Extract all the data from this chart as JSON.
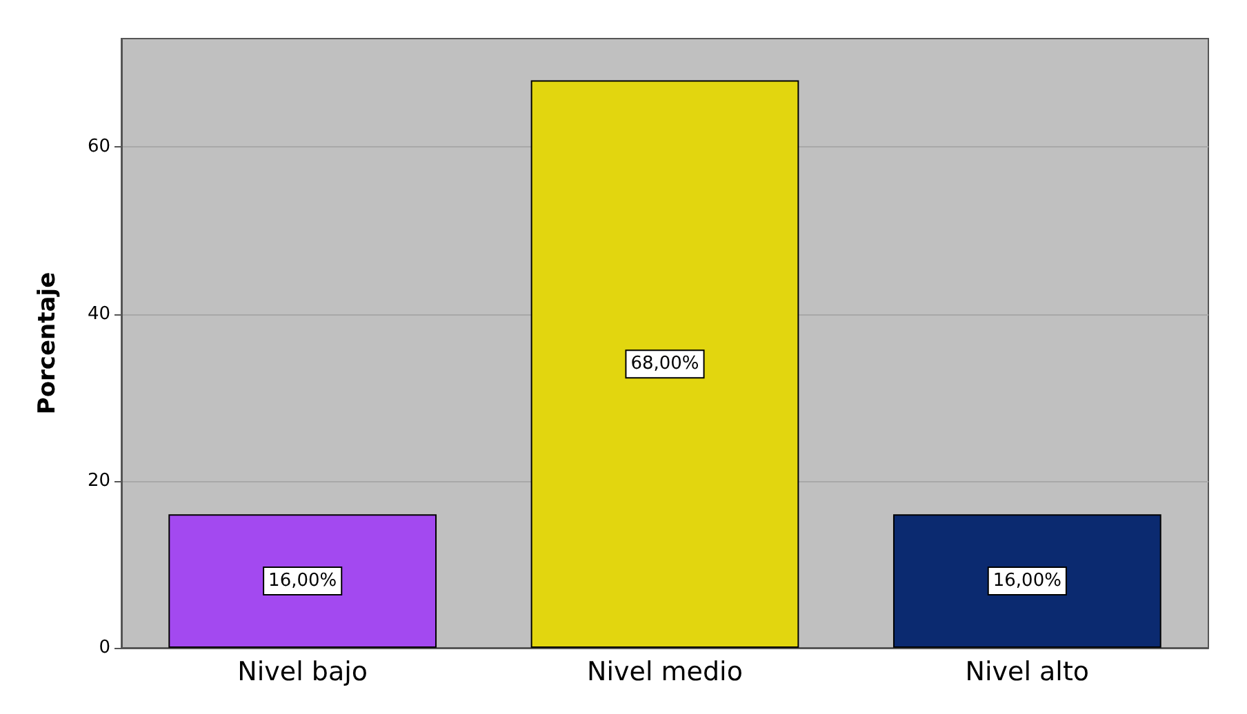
{
  "chart_data": {
    "type": "bar",
    "ylabel": "Porcentaje",
    "categories": [
      "Nivel bajo",
      "Nivel medio",
      "Nivel alto"
    ],
    "values": [
      16,
      68,
      16
    ],
    "colors": [
      "#a349f0",
      "#e2d60f",
      "#0b2a70"
    ],
    "value_labels": [
      "16,00%",
      "68,00%",
      "16,00%"
    ],
    "ylim": [
      0,
      73
    ],
    "yticks": [
      0,
      20,
      40,
      60
    ],
    "grid": "y"
  }
}
